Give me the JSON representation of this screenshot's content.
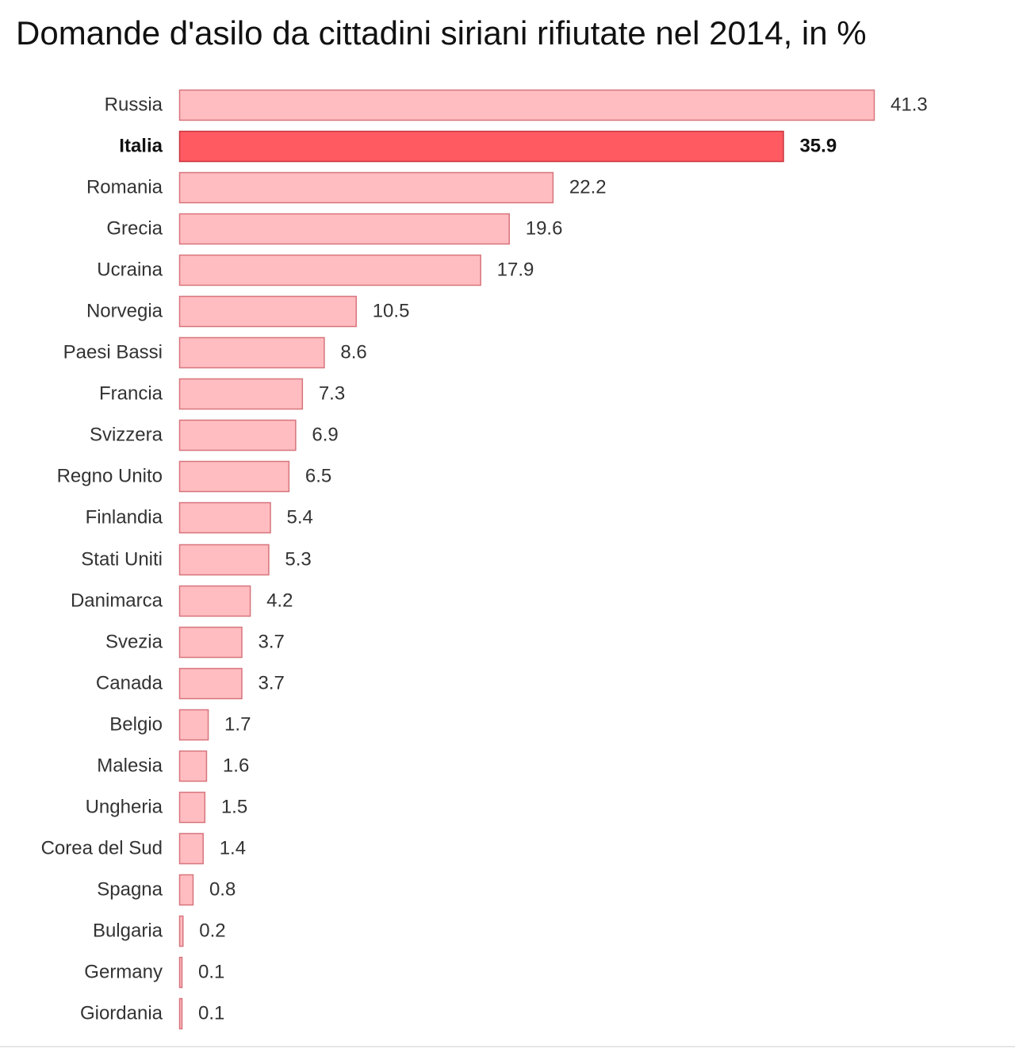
{
  "chart_data": {
    "type": "bar",
    "orientation": "horizontal",
    "title": "Domande d'asilo da cittadini siriani rifiutate nel 2014, in %",
    "xlabel": "",
    "ylabel": "",
    "xlim": [
      0,
      41.3
    ],
    "grid": false,
    "legend": "none",
    "highlight": "Italia",
    "colors": {
      "bar": "#ffbdc1",
      "bar_stroke": "#d7747c",
      "highlight_bar": "#ff5a62",
      "highlight_stroke": "#c8323c"
    },
    "categories": [
      "Russia",
      "Italia",
      "Romania",
      "Grecia",
      "Ucraina",
      "Norvegia",
      "Paesi Bassi",
      "Francia",
      "Svizzera",
      "Regno Unito",
      "Finlandia",
      "Stati Uniti",
      "Danimarca",
      "Svezia",
      "Canada",
      "Belgio",
      "Malesia",
      "Ungheria",
      "Corea del Sud",
      "Spagna",
      "Bulgaria",
      "Germany",
      "Giordania"
    ],
    "values": [
      41.3,
      35.9,
      22.2,
      19.6,
      17.9,
      10.5,
      8.6,
      7.3,
      6.9,
      6.5,
      5.4,
      5.3,
      4.2,
      3.7,
      3.7,
      1.7,
      1.6,
      1.5,
      1.4,
      0.8,
      0.2,
      0.1,
      0.1
    ],
    "value_labels": [
      "41.3",
      "35.9",
      "22.2",
      "19.6",
      "17.9",
      "10.5",
      "8.6",
      "7.3",
      "6.9",
      "6.5",
      "5.4",
      "5.3",
      "4.2",
      "3.7",
      "3.7",
      "1.7",
      "1.6",
      "1.5",
      "1.4",
      "0.8",
      "0.2",
      "0.1",
      "0.1"
    ]
  }
}
